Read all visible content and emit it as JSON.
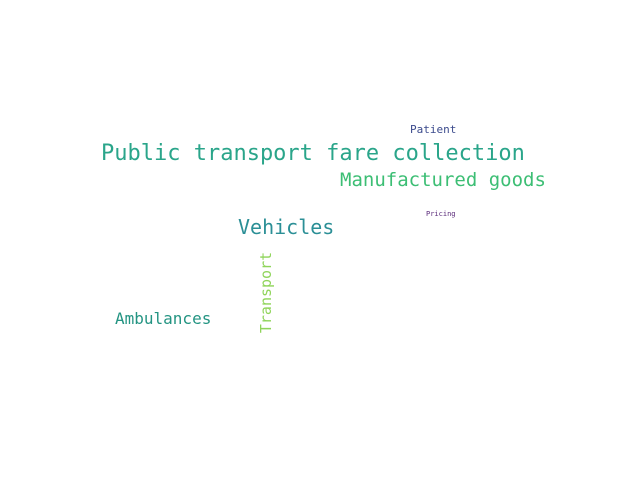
{
  "words": [
    {
      "text": "Patient",
      "color": "#3b4a8c"
    },
    {
      "text": "Public transport fare collection",
      "color": "#2aa58a"
    },
    {
      "text": "Manufactured goods",
      "color": "#3cbe74"
    },
    {
      "text": "Pricing",
      "color": "#5a2a7a"
    },
    {
      "text": "Vehicles",
      "color": "#2b8f96"
    },
    {
      "text": "Ambulances",
      "color": "#239482"
    },
    {
      "text": "Transport",
      "color": "#8fd45a"
    }
  ]
}
